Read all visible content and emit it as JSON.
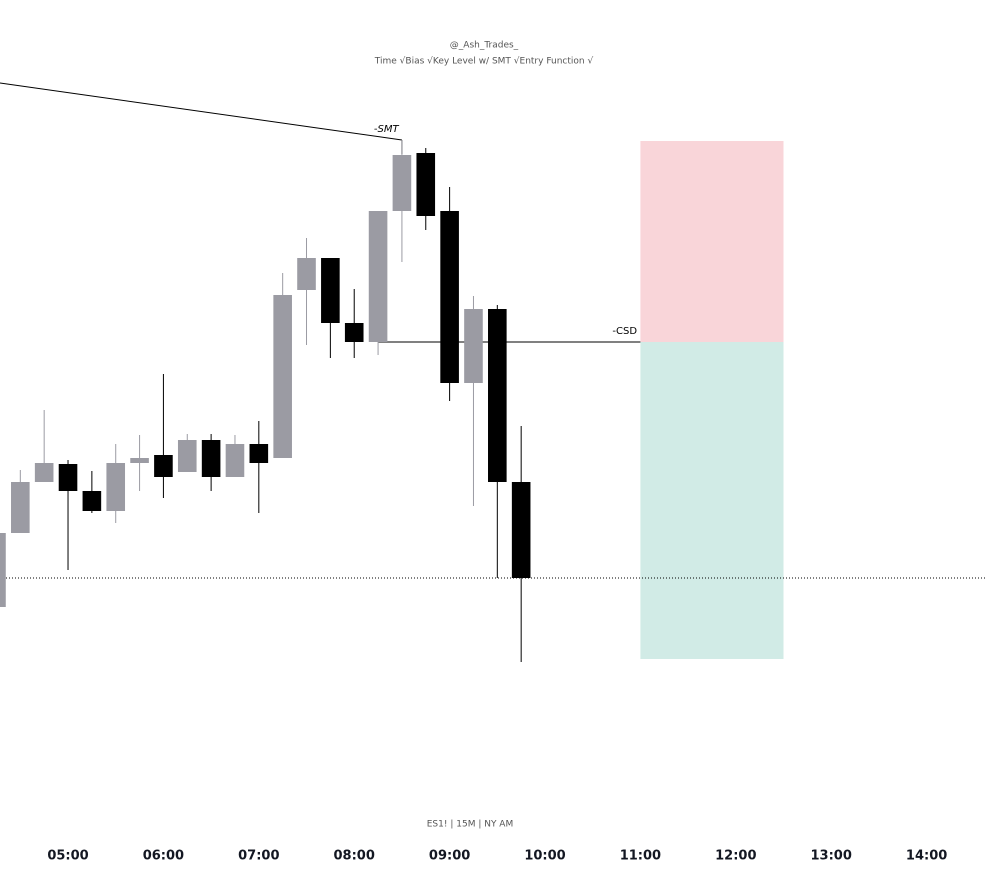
{
  "chart_data": {
    "type": "candlestick",
    "title": "@_Ash_Trades_",
    "subtitle": "Time √Bias √Key Level w/ SMT √Entry Function √",
    "footer": "ES1! | 15M | NY AM",
    "x": [
      4.25,
      4.5,
      4.75,
      5,
      5.25,
      5.5,
      5.75,
      6,
      6.25,
      6.5,
      6.75,
      7,
      7.25,
      7.5,
      7.75,
      8,
      8.25,
      8.5,
      8.75,
      9,
      9.25,
      9.5,
      9.75
    ],
    "open": [
      262,
      336,
      387,
      405,
      378,
      358,
      406,
      414,
      397,
      429,
      392,
      425,
      411,
      579,
      611,
      546,
      527,
      658,
      716,
      658,
      486,
      560,
      387
    ],
    "high": [
      336,
      399,
      459,
      409,
      398,
      425,
      434,
      495,
      435,
      435,
      434,
      448,
      596,
      631,
      611,
      580,
      658,
      729,
      721,
      682,
      573,
      564,
      443
    ],
    "low": [
      262,
      336,
      387,
      299,
      356,
      346,
      378,
      371,
      397,
      378,
      392,
      356,
      411,
      524,
      511,
      511,
      514,
      607,
      639,
      468,
      363,
      291,
      207
    ],
    "close": [
      336,
      387,
      406,
      378,
      358,
      406,
      411,
      392,
      429,
      392,
      425,
      406,
      574,
      611,
      546,
      527,
      658,
      714,
      653,
      486,
      560,
      387,
      291
    ],
    "up_color": "#9b9ba3",
    "down_color": "#000000",
    "xlim": [
      4.287,
      14.633
    ],
    "ylim": [
      0,
      869
    ],
    "xticks": [
      {
        "value": 5,
        "label": "05:00"
      },
      {
        "value": 6,
        "label": "06:00"
      },
      {
        "value": 7,
        "label": "07:00"
      },
      {
        "value": 8,
        "label": "08:00"
      },
      {
        "value": 9,
        "label": "09:00"
      },
      {
        "value": 10,
        "label": "10:00"
      },
      {
        "value": 11,
        "label": "11:00"
      },
      {
        "value": 12,
        "label": "12:00"
      },
      {
        "value": 13,
        "label": "13:00"
      },
      {
        "value": 14,
        "label": "14:00"
      }
    ],
    "smt_line": {
      "label": "-SMT",
      "x": [
        4.287,
        8.5
      ],
      "y": [
        786,
        729
      ]
    },
    "csd_line": {
      "label": "-CSD",
      "x": [
        8.25,
        11.0
      ],
      "y": 527
    },
    "low_line": {
      "y": 291
    },
    "position": {
      "x": [
        11.0,
        12.5
      ],
      "target": 728,
      "entry": 527,
      "stop": 210,
      "target_color": "#f9d5d9",
      "stop_color": "#d1ebe6"
    }
  }
}
